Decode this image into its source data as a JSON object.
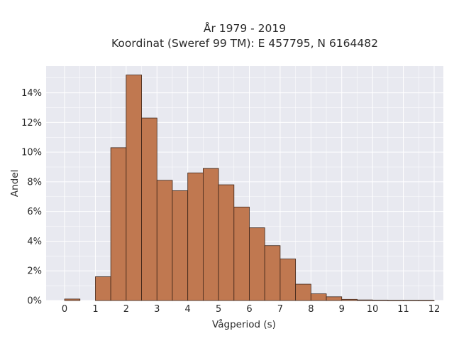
{
  "chart_data": {
    "type": "bar",
    "title": "År 1979 - 2019",
    "subtitle": "Koordinat (Sweref 99 TM): E 457795, N 6164482",
    "xlabel": "Vågperiod (s)",
    "ylabel": "Andel",
    "bin_width": 0.5,
    "bin_starts": [
      0,
      1,
      1.5,
      2,
      2.5,
      3,
      3.5,
      4,
      4.5,
      5,
      5.5,
      6,
      6.5,
      7,
      7.5,
      8,
      8.5,
      9,
      9.5,
      10,
      10.5,
      11,
      11.5
    ],
    "values": [
      0.1,
      1.6,
      10.3,
      15.2,
      12.3,
      8.1,
      7.4,
      8.6,
      8.9,
      7.8,
      6.3,
      4.9,
      3.7,
      2.8,
      1.1,
      0.45,
      0.25,
      0.08,
      0.04,
      0.03,
      0.02,
      0.02,
      0.02
    ],
    "xlim": [
      -0.6,
      12.3
    ],
    "ylim": [
      0,
      15.8
    ],
    "x_ticks": [
      0,
      1,
      2,
      3,
      4,
      5,
      6,
      7,
      8,
      9,
      10,
      11,
      12
    ],
    "x_tick_labels": [
      "0",
      "1",
      "2",
      "3",
      "4",
      "5",
      "6",
      "7",
      "8",
      "9",
      "10",
      "11",
      "12"
    ],
    "y_ticks": [
      0,
      2,
      4,
      6,
      8,
      10,
      12,
      14
    ],
    "y_tick_labels": [
      "0%",
      "2%",
      "4%",
      "6%",
      "8%",
      "10%",
      "12%",
      "14%"
    ],
    "grid": true,
    "legend": "none",
    "bar_color": "#c07850",
    "bar_edge_color": "#3d2418",
    "plot_background": "#e8e9f0",
    "grid_color": "#ffffff"
  }
}
